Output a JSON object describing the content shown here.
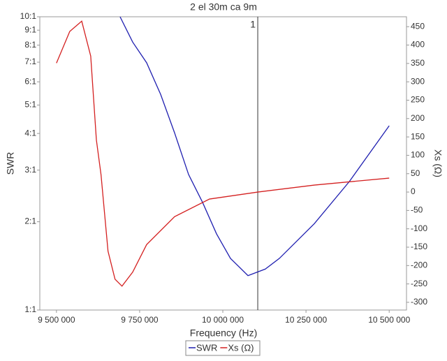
{
  "chart_data": {
    "type": "line",
    "title": "2 el 30m ca 9m",
    "xlabel": "Frequency (Hz)",
    "ylabel": "SWR",
    "y2label": "Xs (Ω)",
    "xlim": [
      9450000,
      10552000
    ],
    "xticks": [
      {
        "value": 9500000,
        "label": "9 500 000"
      },
      {
        "value": 9750000,
        "label": "9 750 000"
      },
      {
        "value": 10000000,
        "label": "10 000 000"
      },
      {
        "value": 10250000,
        "label": "10 250 000"
      },
      {
        "value": 10500000,
        "label": "10 500 000"
      }
    ],
    "ylim": [
      1,
      10
    ],
    "y_scale": "log",
    "yticks": [
      {
        "value": 1,
        "label": "1:1"
      },
      {
        "value": 2,
        "label": "2:1"
      },
      {
        "value": 3,
        "label": "3:1"
      },
      {
        "value": 4,
        "label": "4:1"
      },
      {
        "value": 5,
        "label": "5:1"
      },
      {
        "value": 6,
        "label": "6:1"
      },
      {
        "value": 7,
        "label": "7:1"
      },
      {
        "value": 8,
        "label": "8:1"
      },
      {
        "value": 9,
        "label": "9:1"
      },
      {
        "value": 10,
        "label": "10:1"
      }
    ],
    "y2lim": [
      -321,
      477
    ],
    "y2ticks": [
      -300,
      -250,
      -200,
      -150,
      -100,
      -50,
      0,
      50,
      100,
      150,
      200,
      250,
      300,
      350,
      400,
      450
    ],
    "series": [
      {
        "name": "SWR",
        "color": "#1f1fb0",
        "axis": "y",
        "x": [
          9691176,
          9729000,
          9771000,
          9813000,
          9855000,
          9897000,
          9939000,
          9981000,
          10023000,
          10075600,
          10128000,
          10170000,
          10275000,
          10380000,
          10500000
        ],
        "values": [
          10,
          8.2,
          6.97,
          5.44,
          4.02,
          2.9,
          2.33,
          1.82,
          1.5,
          1.31,
          1.38,
          1.5,
          1.97,
          2.74,
          4.25
        ]
      },
      {
        "name": "Xs (Ω)",
        "color": "#d42020",
        "axis": "y2",
        "x": [
          9500000,
          9540000,
          9576000,
          9603000,
          9620000,
          9634000,
          9655000,
          9676000,
          9697000,
          9729000,
          9771000,
          9855000,
          9960000,
          10105000,
          10275000,
          10500000
        ],
        "values": [
          351,
          437,
          465,
          370,
          142,
          47,
          -161,
          -237,
          -256,
          -218,
          -143,
          -67,
          -19,
          0,
          19,
          38
        ]
      }
    ],
    "markers": [
      {
        "x": 10105000,
        "label": "1"
      }
    ],
    "legend": "bottom"
  }
}
